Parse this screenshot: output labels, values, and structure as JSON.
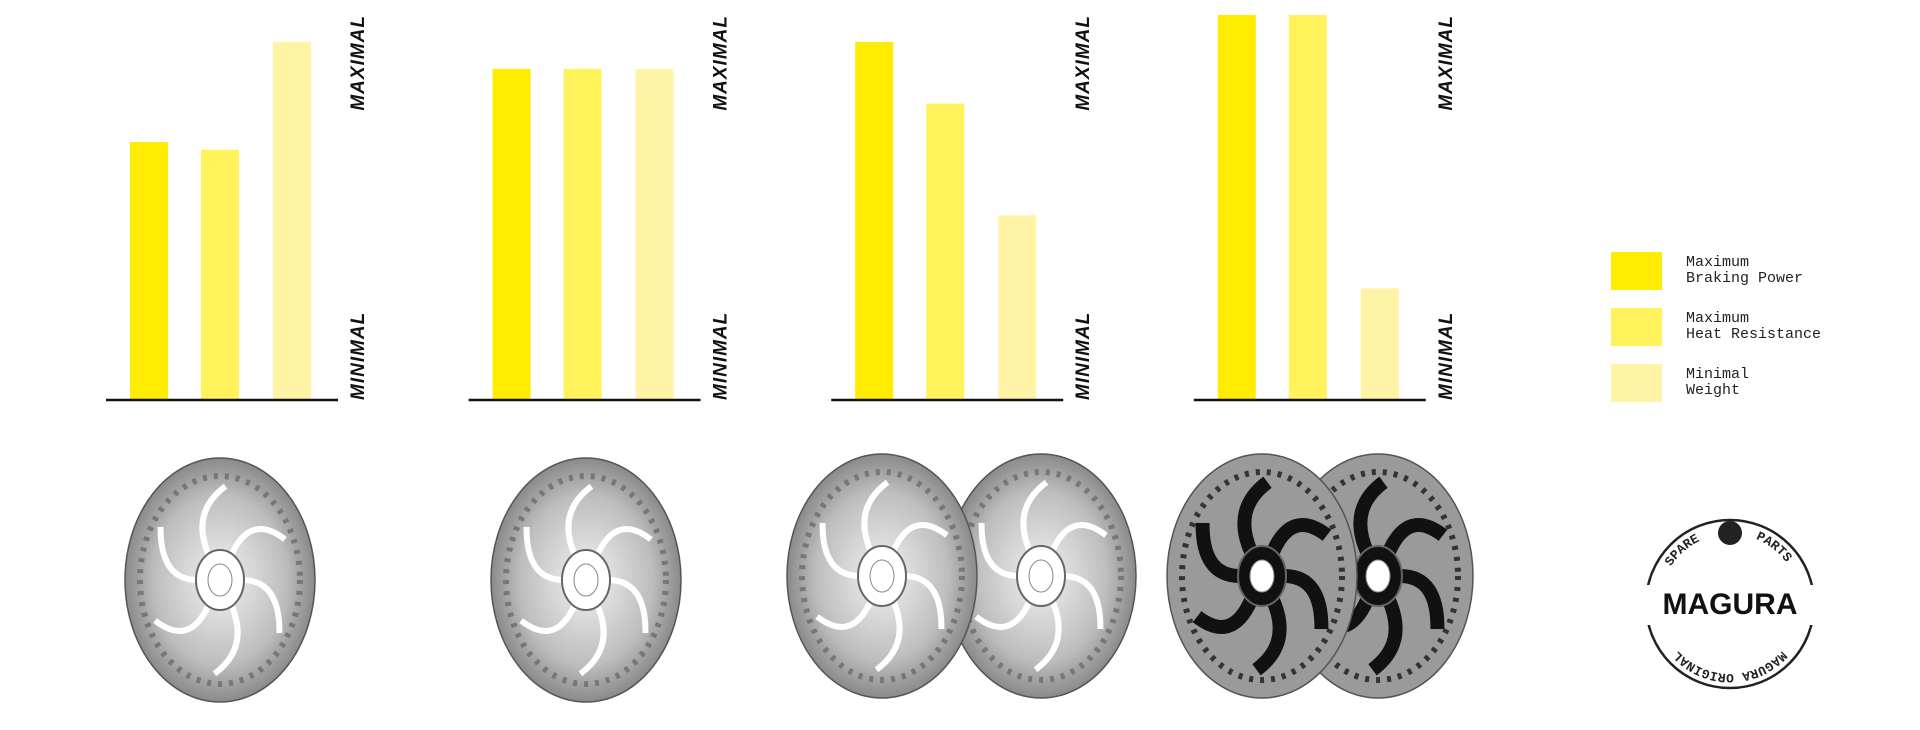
{
  "chart_data": {
    "type": "bar",
    "categories": [
      null,
      null,
      null,
      null
    ],
    "series": [
      {
        "name": "Maximum\nBraking Power",
        "color": "#ffec00",
        "values": [
          67,
          86,
          93,
          100
        ]
      },
      {
        "name": "Maximum\nHeat Resistance",
        "color": "#fff25a",
        "values": [
          65,
          86,
          77,
          100
        ]
      },
      {
        "name": "Minimal\nWeight",
        "color": "#fff4a6",
        "values": [
          93,
          86,
          48,
          29
        ]
      }
    ],
    "ylim": [
      0,
      100
    ],
    "yticks": [
      {
        "value": 0,
        "label": "MINIMAL"
      },
      {
        "value": 100,
        "label": "MAXIMAL"
      }
    ],
    "legend": "right"
  },
  "badge": {
    "left": "SPARE",
    "right": "PARTS",
    "brand": "MAGURA",
    "bottom": "MAGURA ORIGINAL"
  }
}
